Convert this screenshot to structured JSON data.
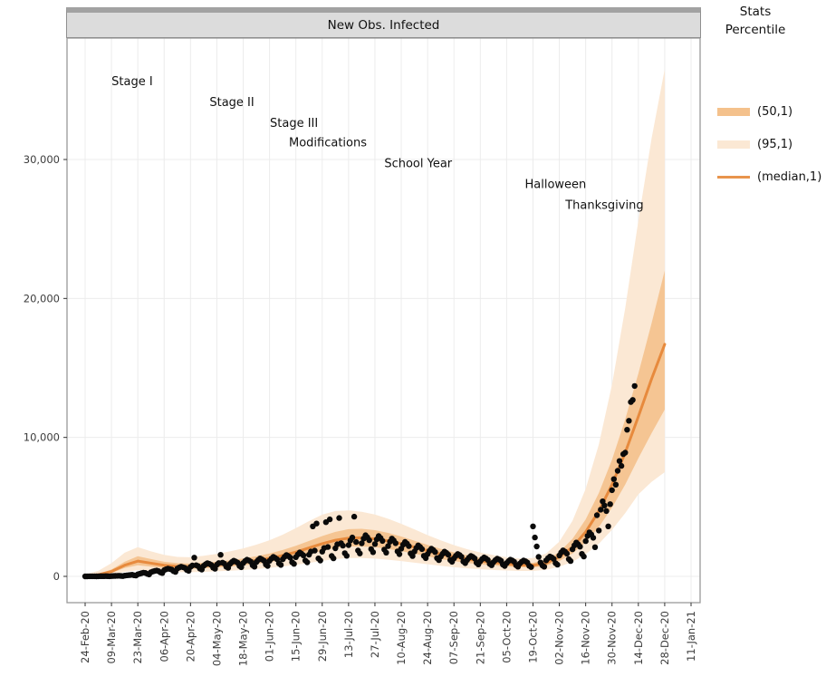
{
  "chart_data": {
    "type": "line",
    "title": "New Obs. Infected",
    "legend": {
      "title": "Stats\nPercentile",
      "entries": [
        {
          "label": "(50,1)",
          "kind": "band",
          "color": "#f4c18c"
        },
        {
          "label": "(95,1)",
          "kind": "band",
          "color": "#fbe8d4"
        },
        {
          "label": "(median,1)",
          "kind": "line",
          "color": "#e8944c"
        }
      ]
    },
    "colors": {
      "band50": "#f4c18c",
      "band95": "#fbe8d4",
      "median": "#e78a3d",
      "points": "#0a0a0a",
      "grid": "#ececec",
      "panel_border": "#999999",
      "tick_text": "#3c3c3c",
      "annotation_text": "#111111"
    },
    "x_axis": {
      "start_date": "24-Feb-20",
      "end_date": "11-Jan-21",
      "tick_interval_days": 14,
      "tick_days": [
        0,
        14,
        28,
        42,
        56,
        70,
        84,
        98,
        112,
        126,
        140,
        154,
        168,
        182,
        196,
        210,
        224,
        238,
        252,
        266,
        280,
        294,
        308,
        322
      ],
      "tick_labels": [
        "24-Feb-20",
        "09-Mar-20",
        "23-Mar-20",
        "06-Apr-20",
        "20-Apr-20",
        "04-May-20",
        "18-May-20",
        "01-Jun-20",
        "15-Jun-20",
        "29-Jun-20",
        "13-Jul-20",
        "27-Jul-20",
        "10-Aug-20",
        "24-Aug-20",
        "07-Sep-20",
        "21-Sep-20",
        "05-Oct-20",
        "19-Oct-20",
        "02-Nov-20",
        "16-Nov-20",
        "30-Nov-20",
        "14-Dec-20",
        "28-Dec-20",
        "11-Jan-21"
      ]
    },
    "y_axis": {
      "ticks": [
        0,
        10000,
        20000,
        30000
      ],
      "tick_labels": [
        "0",
        "10,000",
        "20,000",
        "30,000"
      ],
      "lim": [
        -1900,
        38700
      ],
      "grid": true
    },
    "annotations": [
      {
        "text": "Stage I",
        "day": 25,
        "value": 35600
      },
      {
        "text": "Stage II",
        "day": 78,
        "value": 34100
      },
      {
        "text": "Stage III",
        "day": 111,
        "value": 32600
      },
      {
        "text": "Modifications",
        "day": 129,
        "value": 31200
      },
      {
        "text": "School Year",
        "day": 177,
        "value": 29700
      },
      {
        "text": "Halloween",
        "day": 250,
        "value": 28200
      },
      {
        "text": "Thanksgiving",
        "day": 276,
        "value": 26700
      }
    ],
    "forecast": {
      "knot_days": [
        0,
        7,
        14,
        21,
        28,
        35,
        42,
        49,
        56,
        63,
        70,
        77,
        84,
        91,
        98,
        105,
        112,
        119,
        126,
        133,
        140,
        147,
        154,
        161,
        168,
        175,
        182,
        189,
        196,
        203,
        210,
        217,
        224,
        231,
        238,
        245,
        252,
        259,
        266,
        273,
        280,
        287,
        294,
        301,
        308
      ],
      "median": [
        30,
        120,
        350,
        800,
        1100,
        950,
        800,
        720,
        700,
        750,
        820,
        900,
        1000,
        1150,
        1300,
        1500,
        1750,
        2050,
        2350,
        2600,
        2750,
        2780,
        2700,
        2550,
        2350,
        2100,
        1850,
        1600,
        1400,
        1250,
        1100,
        1000,
        900,
        820,
        800,
        950,
        1400,
        2100,
        3200,
        4700,
        6600,
        8900,
        11500,
        14200,
        16700
      ],
      "p50_lower": [
        10,
        80,
        250,
        600,
        800,
        700,
        600,
        550,
        540,
        580,
        640,
        700,
        780,
        900,
        1020,
        1180,
        1380,
        1600,
        1850,
        2050,
        2150,
        2150,
        2100,
        1980,
        1820,
        1630,
        1440,
        1250,
        1100,
        970,
        860,
        780,
        710,
        650,
        640,
        760,
        1100,
        1650,
        2450,
        3550,
        4950,
        6600,
        8500,
        10300,
        12000
      ],
      "p50_upper": [
        60,
        180,
        500,
        1050,
        1450,
        1250,
        1050,
        950,
        920,
        980,
        1060,
        1160,
        1290,
        1450,
        1650,
        1900,
        2200,
        2550,
        2900,
        3200,
        3400,
        3420,
        3330,
        3130,
        2870,
        2570,
        2270,
        1980,
        1730,
        1520,
        1340,
        1200,
        1080,
        990,
        980,
        1180,
        1750,
        2700,
        4100,
        6000,
        8400,
        11300,
        14600,
        18200,
        22000
      ],
      "p95_lower": [
        0,
        40,
        130,
        330,
        450,
        390,
        340,
        310,
        300,
        330,
        370,
        410,
        460,
        530,
        610,
        710,
        830,
        970,
        1120,
        1250,
        1320,
        1320,
        1280,
        1200,
        1100,
        990,
        870,
        760,
        660,
        580,
        510,
        460,
        420,
        390,
        390,
        470,
        690,
        1050,
        1600,
        2350,
        3350,
        4550,
        5900,
        6800,
        7500
      ],
      "p95_upper": [
        150,
        400,
        950,
        1700,
        2100,
        1800,
        1550,
        1400,
        1380,
        1480,
        1620,
        1800,
        2010,
        2280,
        2600,
        3000,
        3470,
        3980,
        4440,
        4700,
        4750,
        4650,
        4450,
        4150,
        3780,
        3380,
        2970,
        2590,
        2250,
        1960,
        1720,
        1530,
        1380,
        1290,
        1320,
        1650,
        2500,
        4000,
        6300,
        9500,
        13800,
        19300,
        25600,
        31500,
        36500
      ]
    },
    "observed": {
      "start_day": 0,
      "start_date": "24-Feb-20",
      "cadence": "daily",
      "values": [
        2,
        3,
        4,
        5,
        6,
        4,
        3,
        8,
        10,
        12,
        15,
        18,
        12,
        9,
        20,
        25,
        30,
        38,
        45,
        30,
        22,
        55,
        70,
        85,
        100,
        115,
        80,
        60,
        150,
        190,
        230,
        270,
        250,
        180,
        140,
        300,
        350,
        390,
        420,
        380,
        290,
        240,
        450,
        510,
        560,
        530,
        490,
        380,
        320,
        560,
        640,
        700,
        660,
        610,
        470,
        400,
        680,
        780,
        1350,
        800,
        740,
        560,
        490,
        760,
        870,
        950,
        900,
        830,
        630,
        550,
        840,
        960,
        1550,
        990,
        920,
        700,
        610,
        900,
        1030,
        1130,
        1070,
        990,
        750,
        660,
        960,
        1100,
        1200,
        1140,
        1060,
        800,
        700,
        1030,
        1180,
        1290,
        1220,
        1130,
        860,
        750,
        1120,
        1280,
        1400,
        1330,
        1230,
        930,
        820,
        1230,
        1410,
        1540,
        1460,
        1350,
        1020,
        900,
        1380,
        1580,
        1720,
        1630,
        1510,
        1140,
        1010,
        1560,
        1790,
        3600,
        1850,
        3800,
        1290,
        1140,
        1780,
        2040,
        3900,
        2110,
        4100,
        1470,
        1300,
        2020,
        2310,
        4200,
        2390,
        2210,
        1670,
        1480,
        2250,
        2580,
        2800,
        4300,
        2470,
        1860,
        1650,
        2380,
        2720,
        2960,
        2810,
        2600,
        1960,
        1740,
        2330,
        2670,
        2900,
        2760,
        2550,
        1930,
        1710,
        2180,
        2500,
        2720,
        2580,
        2390,
        1800,
        1600,
        1990,
        2280,
        2480,
        2360,
        2180,
        1650,
        1460,
        1790,
        2050,
        2230,
        2120,
        1960,
        1480,
        1310,
        1600,
        1830,
        1990,
        1890,
        1750,
        1320,
        1170,
        1430,
        1630,
        1780,
        1690,
        1560,
        1180,
        1050,
        1290,
        1480,
        1610,
        1530,
        1410,
        1070,
        950,
        1180,
        1350,
        1470,
        1400,
        1290,
        980,
        860,
        1090,
        1250,
        1360,
        1290,
        1190,
        900,
        800,
        1020,
        1170,
        1270,
        1210,
        1120,
        850,
        750,
        960,
        1100,
        1200,
        1140,
        1050,
        800,
        700,
        920,
        1050,
        1140,
        1090,
        1000,
        760,
        670,
        3600,
        2800,
        2150,
        1400,
        1000,
        780,
        700,
        1150,
        1310,
        1430,
        1360,
        1260,
        950,
        840,
        1500,
        1720,
        1870,
        1780,
        1640,
        1240,
        1100,
        1950,
        2230,
        2430,
        2310,
        2140,
        1620,
        1430,
        2540,
        2910,
        3170,
        3010,
        2780,
        2100,
        4400,
        3300,
        4800,
        5400,
        5100,
        4700,
        3600,
        5200,
        6200,
        7000,
        6600,
        7600,
        8300,
        7950,
        8800,
        8900,
        10550,
        11200,
        12550,
        12700,
        13700
      ]
    }
  }
}
